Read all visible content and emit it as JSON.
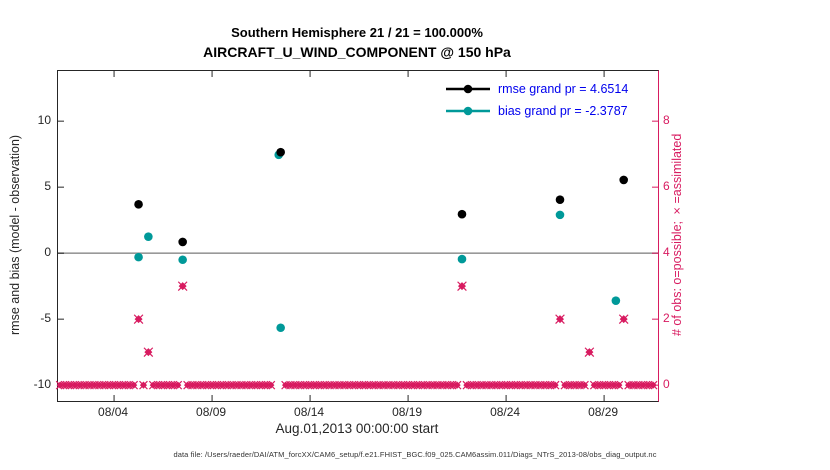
{
  "title": {
    "line1": "Southern Hemisphere 21 / 21 = 100.000%",
    "line2": "AIRCRAFT_U_WIND_COMPONENT @ 150 hPa"
  },
  "axes": {
    "left_label": "rmse and bias (model - observation)",
    "right_label": "# of obs: o=possible; ×=assimilated",
    "x_label": "Aug.01,2013 00:00:00 start",
    "x_ticks": [
      {
        "value": 4,
        "label": "08/04"
      },
      {
        "value": 9,
        "label": "08/09"
      },
      {
        "value": 14,
        "label": "08/14"
      },
      {
        "value": 19,
        "label": "08/19"
      },
      {
        "value": 24,
        "label": "08/24"
      },
      {
        "value": 29,
        "label": "08/29"
      }
    ],
    "left_ticks": [
      {
        "value": -10,
        "label": "-10"
      },
      {
        "value": -5,
        "label": "-5"
      },
      {
        "value": 0,
        "label": "0"
      },
      {
        "value": 5,
        "label": "5"
      },
      {
        "value": 10,
        "label": "10"
      }
    ],
    "right_ticks": [
      {
        "value": 0,
        "label": "0"
      },
      {
        "value": 2,
        "label": "2"
      },
      {
        "value": 4,
        "label": "4"
      },
      {
        "value": 6,
        "label": "6"
      },
      {
        "value": 8,
        "label": "8"
      }
    ]
  },
  "legend": [
    {
      "label": "rmse grand pr = 4.6514",
      "color": "#000000"
    },
    {
      "label": "bias grand pr = -2.3787",
      "color": "#009999"
    }
  ],
  "colors": {
    "rmse": "#000000",
    "bias": "#009999",
    "obs": "#d81b60",
    "legend_text": "#0000ee",
    "zero_line": "#999999",
    "axis": "#262626"
  },
  "caption": "data file: /Users/raeder/DAI/ATM_forcXX/CAM6_setup/f.e21.FHIST_BGC.f09_025.CAM6assim.011/Diags_NTrS_2013-08/obs_diag_output.nc",
  "chart_data": {
    "type": "scatter",
    "title": "AIRCRAFT_U_WIND_COMPONENT @ 150 hPa, Southern Hemisphere, 21/21 = 100.000%",
    "xlabel": "Aug.01,2013 00:00:00 start (days of Aug 2013)",
    "ylabel_left": "rmse and bias (model - observation)",
    "ylabel_right": "# of obs: o=possible; ×=assimilated",
    "xlim": [
      1.14,
      31.75
    ],
    "ylim_left": [
      -11.2,
      13.8
    ],
    "ylim_right": [
      -0.48,
      9.52
    ],
    "grid": false,
    "legend_position": "top-right-inside",
    "zero_reference_line": 0,
    "series": [
      {
        "name": "rmse",
        "axis": "left",
        "marker": "circle",
        "color": "#000000",
        "points": [
          [
            5.25,
            3.7
          ],
          [
            7.5,
            0.85
          ],
          [
            12.5,
            7.65
          ],
          [
            21.75,
            2.95
          ],
          [
            26.75,
            4.05
          ],
          [
            30.0,
            5.55
          ]
        ]
      },
      {
        "name": "bias",
        "axis": "left",
        "marker": "circle",
        "color": "#009999",
        "points": [
          [
            5.25,
            -0.3
          ],
          [
            5.75,
            1.25
          ],
          [
            7.5,
            -0.5
          ],
          [
            12.4,
            7.45
          ],
          [
            12.5,
            -5.65
          ],
          [
            21.75,
            -0.45
          ],
          [
            26.75,
            2.9
          ],
          [
            29.6,
            -3.6
          ]
        ]
      },
      {
        "name": "obs_count",
        "axis": "right",
        "marker": "diamond-x",
        "color": "#d81b60",
        "points": [
          [
            5.25,
            2
          ],
          [
            5.75,
            1
          ],
          [
            7.5,
            3
          ],
          [
            21.75,
            3
          ],
          [
            26.75,
            2
          ],
          [
            28.25,
            1
          ],
          [
            30.0,
            2
          ]
        ]
      }
    ],
    "zero_row": {
      "series": "obs_count",
      "value": 0,
      "start": 1.25,
      "end": 31.5,
      "step": 0.25,
      "exclude": [
        5.25,
        5.75,
        7.5,
        12.25,
        12.5,
        21.75,
        26.75,
        28.25,
        30
      ]
    }
  }
}
